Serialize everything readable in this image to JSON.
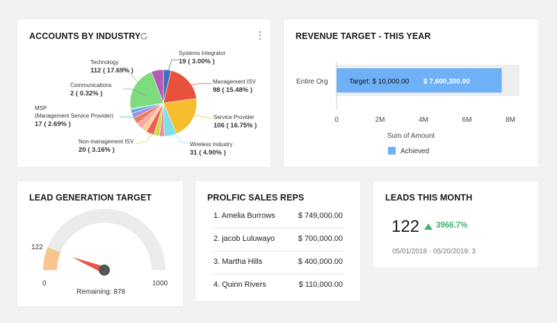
{
  "accounts": {
    "title": "ACCOUNTS BY INDUSTRY",
    "refresh_icon": "refresh-icon",
    "more_icon": "more-vertical-icon",
    "chart_data": {
      "type": "pie",
      "title": "ACCOUNTS BY INDUSTRY",
      "slices": [
        {
          "name": "Systems Integrator",
          "value": 19,
          "percent": "3.00%",
          "color": "#3f6fb5"
        },
        {
          "name": "Management ISV",
          "value": 98,
          "percent": "15.48%",
          "color": "#e8513a"
        },
        {
          "name": "Service Provider",
          "value": 106,
          "percent": "16.75%",
          "color": "#f6bd2f"
        },
        {
          "name": "Wireless Industry",
          "value": 31,
          "percent": "4.90%",
          "color": "#7ee0e8"
        },
        {
          "name": "",
          "value": 12,
          "color": "#f08a9c"
        },
        {
          "name": "",
          "value": 14,
          "color": "#c9e04a"
        },
        {
          "name": "Non-management ISV",
          "value": 20,
          "percent": "3.16%",
          "color": "#f05d5d"
        },
        {
          "name": "",
          "value": 13,
          "color": "#ffd28a"
        },
        {
          "name": "",
          "value": 16,
          "color": "#f9a6a6"
        },
        {
          "name": "MSP (Management Service Provider)",
          "value": 17,
          "percent": "2.69%",
          "color": "#f57a5a"
        },
        {
          "name": "",
          "value": 12,
          "color": "#a98ae0"
        },
        {
          "name": "",
          "value": 10,
          "color": "#5ab0e8"
        },
        {
          "name": "Communications",
          "value": 2,
          "percent": "0.32%",
          "color": "#c0c0c0"
        },
        {
          "name": "Technology",
          "value": 112,
          "percent": "17.69%",
          "color": "#7ddc7d"
        },
        {
          "name": "",
          "value": 30,
          "color": "#b45ab8"
        }
      ]
    },
    "labels": [
      {
        "line1": "Systems Integrator",
        "line2": "19 ( 3.00% )"
      },
      {
        "line1": "Management ISV",
        "line2": "98 ( 15.48% )"
      },
      {
        "line1": "Service Provider",
        "line2": "106 ( 16.75% )"
      },
      {
        "line1": "Wireless Industry",
        "line2": "31 ( 4.90% )"
      },
      {
        "line1": "Non-management ISV",
        "line2": "20 ( 3.16% )"
      },
      {
        "line1": "MSP",
        "line1b": "(Management Service Provider)",
        "line2": "17 ( 2.69% )"
      },
      {
        "line1": "Communications",
        "line2": "2 ( 0.32% )"
      },
      {
        "line1": "Technology",
        "line2": "112 ( 17.69% )"
      }
    ]
  },
  "revenue": {
    "title": "REVENUE TARGET - THIS YEAR",
    "chart_data": {
      "type": "bar",
      "orientation": "horizontal",
      "categories": [
        "Entire Org"
      ],
      "series": [
        {
          "name": "Achieved",
          "values": [
            7600300
          ]
        }
      ],
      "target_label": "Target: $ 10,000.00",
      "value_label": "$ 7,600,300.00",
      "xlabel": "Sum of Amount",
      "xlim": [
        0,
        8000000
      ],
      "ticks": [
        "0",
        "2M",
        "4M",
        "6M",
        "8M"
      ],
      "legend_placement": "bottom",
      "colors": {
        "bar": "#6fb1f7",
        "track": "#eeeeee"
      }
    }
  },
  "lead_gen": {
    "title": "LEAD GENERATION TARGET",
    "chart_data": {
      "type": "gauge",
      "value": 122,
      "min": 0,
      "max": 1000,
      "min_label": "0",
      "max_label": "1000",
      "value_label": "122",
      "remaining_label": "Remaining: 878",
      "colors": {
        "fill": "#f8c58e",
        "track": "#ebebeb",
        "needle": "#e8574c"
      }
    }
  },
  "sales_reps": {
    "title": "PROLFIC SALES REPS",
    "rows": [
      {
        "name": "1. Amelia Burrows",
        "amount": "$ 749,000.00"
      },
      {
        "name": "2. jacob Luluwayo",
        "amount": "$ 700,000.00"
      },
      {
        "name": "3. Martha Hills",
        "amount": "$ 400,000.00"
      },
      {
        "name": "4. Quinn Rivers",
        "amount": "$ 110,000.00"
      }
    ]
  },
  "leads_month": {
    "title": "LEADS THIS MONTH",
    "value": "122",
    "change": "3966.7%",
    "change_icon": "up-triangle-icon",
    "change_color": "#3cb371",
    "comparison": "05/01/2018 - 05/20/2019: 3"
  }
}
